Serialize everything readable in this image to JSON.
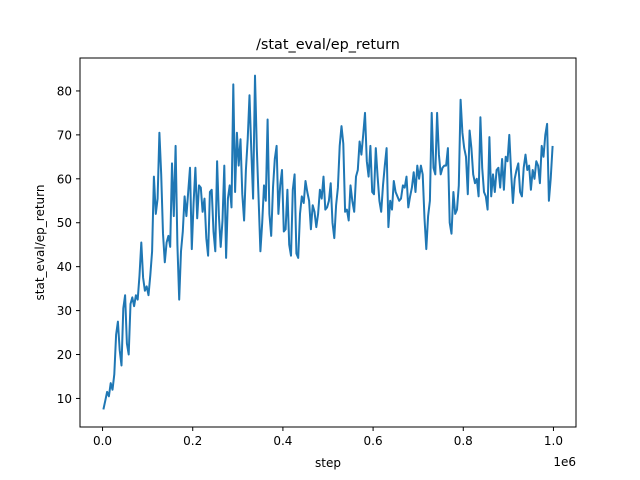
{
  "chart_data": {
    "type": "line",
    "title": "/stat_eval/ep_return",
    "xlabel": "step",
    "ylabel": "stat_eval/ep_return",
    "x_offset_label": "1e6",
    "xlim": [
      -50000,
      1050000
    ],
    "ylim": [
      3.5,
      87.5
    ],
    "x_tick_values": [
      0.0,
      200000,
      400000,
      600000,
      800000,
      1000000
    ],
    "x_tick_labels": [
      "0.0",
      "0.2",
      "0.4",
      "0.6",
      "0.8",
      "1.0"
    ],
    "y_tick_values": [
      10,
      20,
      30,
      40,
      50,
      60,
      70,
      80
    ],
    "y_tick_labels": [
      "10",
      "20",
      "30",
      "40",
      "50",
      "60",
      "70",
      "80"
    ],
    "grid": false,
    "line_color": "#1f77b4",
    "series": [
      {
        "x": [
          2000,
          6000,
          10000,
          14000,
          18000,
          22000,
          26000,
          30000,
          34000,
          38000,
          42000,
          46000,
          50000,
          54000,
          58000,
          62000,
          66000,
          70000,
          74000,
          78000,
          82000,
          86000,
          90000,
          94000,
          98000,
          102000,
          106000,
          110000,
          114000,
          118000,
          122000,
          126000,
          130000,
          134000,
          138000,
          142000,
          146000,
          150000,
          154000,
          158000,
          162000,
          166000,
          170000,
          174000,
          178000,
          182000,
          186000,
          190000,
          194000,
          198000,
          202000,
          206000,
          210000,
          214000,
          218000,
          222000,
          226000,
          230000,
          234000,
          238000,
          242000,
          246000,
          250000,
          254000,
          258000,
          262000,
          266000,
          270000,
          274000,
          278000,
          282000,
          286000,
          290000,
          294000,
          298000,
          302000,
          306000,
          310000,
          314000,
          318000,
          322000,
          326000,
          330000,
          334000,
          338000,
          342000,
          346000,
          350000,
          354000,
          358000,
          362000,
          366000,
          370000,
          374000,
          378000,
          382000,
          386000,
          390000,
          394000,
          398000,
          402000,
          406000,
          410000,
          414000,
          418000,
          422000,
          426000,
          430000,
          434000,
          438000,
          442000,
          446000,
          450000,
          454000,
          458000,
          462000,
          466000,
          470000,
          474000,
          478000,
          482000,
          486000,
          490000,
          494000,
          498000,
          502000,
          506000,
          510000,
          514000,
          518000,
          522000,
          526000,
          530000,
          534000,
          538000,
          542000,
          546000,
          550000,
          554000,
          558000,
          562000,
          566000,
          570000,
          574000,
          578000,
          582000,
          586000,
          590000,
          594000,
          598000,
          602000,
          606000,
          610000,
          614000,
          618000,
          622000,
          626000,
          630000,
          634000,
          638000,
          642000,
          646000,
          650000,
          654000,
          658000,
          662000,
          666000,
          670000,
          674000,
          678000,
          682000,
          686000,
          690000,
          694000,
          698000,
          702000,
          706000,
          710000,
          714000,
          718000,
          722000,
          726000,
          730000,
          734000,
          738000,
          742000,
          746000,
          750000,
          754000,
          758000,
          762000,
          766000,
          770000,
          774000,
          778000,
          782000,
          786000,
          790000,
          794000,
          798000,
          802000,
          806000,
          810000,
          814000,
          818000,
          822000,
          826000,
          830000,
          834000,
          838000,
          842000,
          846000,
          850000,
          854000,
          858000,
          862000,
          866000,
          870000,
          874000,
          878000,
          882000,
          886000,
          890000,
          894000,
          898000,
          902000,
          906000,
          910000,
          914000,
          918000,
          922000,
          926000,
          930000,
          934000,
          938000,
          942000,
          946000,
          950000,
          954000,
          958000,
          962000,
          966000,
          970000,
          974000,
          978000,
          982000,
          986000,
          990000,
          994000,
          998000
        ],
        "y": [
          7.5,
          9.5,
          11.5,
          10.5,
          13.5,
          12,
          15.5,
          24.5,
          27.5,
          21,
          17.5,
          30.5,
          33.5,
          22.5,
          20,
          31.5,
          33,
          31,
          33.5,
          32.5,
          38,
          45.5,
          37.5,
          34.5,
          35.5,
          33.5,
          38,
          43.5,
          60.5,
          52,
          55.5,
          70.5,
          61,
          47.5,
          41,
          45.5,
          47,
          44.5,
          63.5,
          51.5,
          67.5,
          45,
          32.5,
          43.5,
          48,
          56,
          51.5,
          57,
          62.5,
          44,
          54.5,
          62.5,
          51,
          58.5,
          58,
          52.5,
          55.5,
          46.5,
          42.5,
          57,
          57.5,
          48,
          43.5,
          64,
          51.5,
          44.5,
          50.5,
          63,
          42,
          55.5,
          58.5,
          53.5,
          81.5,
          57,
          70.5,
          63,
          69,
          56.5,
          50.5,
          62,
          69,
          79,
          66.5,
          55.5,
          83.5,
          67,
          55.5,
          43.5,
          50,
          58.5,
          55,
          73.5,
          52,
          47,
          58,
          64.5,
          67.5,
          52,
          58.5,
          62,
          48,
          48.5,
          57.5,
          45,
          42.5,
          57.5,
          61,
          43,
          42,
          52,
          56,
          54.5,
          59.5,
          57,
          55,
          48.5,
          54,
          52.5,
          49,
          52,
          57.5,
          55.5,
          60.5,
          53,
          53.5,
          55,
          59,
          50,
          46.5,
          54,
          58,
          67.5,
          72,
          68,
          52.5,
          53,
          50.5,
          58.5,
          55,
          52.5,
          60.5,
          62,
          68.5,
          65.5,
          70,
          75,
          64,
          60.5,
          67.5,
          57,
          56.5,
          67,
          60.5,
          55,
          52.5,
          58.5,
          63,
          67,
          49,
          55,
          53,
          59.5,
          57,
          56,
          55,
          55.5,
          58.5,
          58,
          60.5,
          53.5,
          56,
          58,
          61.5,
          57,
          63,
          60,
          63,
          61,
          51,
          44,
          51.5,
          55,
          75,
          62.5,
          61,
          75,
          65.5,
          61,
          62.5,
          63,
          63,
          67,
          50,
          47.5,
          57,
          52,
          53,
          58.5,
          78,
          70.5,
          67,
          65,
          56.5,
          71,
          67,
          61,
          59,
          60,
          56,
          74,
          62.5,
          57,
          56,
          53,
          69.5,
          56,
          61,
          57,
          62,
          62.5,
          58,
          64.5,
          57.5,
          65,
          64,
          70,
          61.5,
          54.5,
          60,
          62,
          63.5,
          57,
          56,
          62.5,
          65.5,
          62,
          63,
          57.5,
          62,
          60,
          64,
          63,
          59,
          67.5,
          65,
          70,
          72.5,
          55,
          60,
          67.5
        ]
      }
    ]
  }
}
